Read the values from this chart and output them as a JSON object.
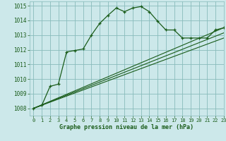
{
  "title": "Graphe pression niveau de la mer (hPa)",
  "background_color": "#cce8ea",
  "grid_color": "#88bbbb",
  "line_color": "#1a5c1a",
  "text_color": "#1a5c1a",
  "xlim": [
    -0.5,
    23
  ],
  "ylim": [
    1007.5,
    1015.3
  ],
  "yticks": [
    1008,
    1009,
    1010,
    1011,
    1012,
    1013,
    1014,
    1015
  ],
  "xticks": [
    0,
    1,
    2,
    3,
    4,
    5,
    6,
    7,
    8,
    9,
    10,
    11,
    12,
    13,
    14,
    15,
    16,
    17,
    18,
    19,
    20,
    21,
    22,
    23
  ],
  "main_series": [
    [
      0,
      1008.0
    ],
    [
      1,
      1008.2
    ],
    [
      2,
      1009.5
    ],
    [
      3,
      1009.65
    ],
    [
      4,
      1011.85
    ],
    [
      5,
      1011.95
    ],
    [
      6,
      1012.05
    ],
    [
      7,
      1013.0
    ],
    [
      8,
      1013.8
    ],
    [
      9,
      1014.35
    ],
    [
      10,
      1014.85
    ],
    [
      11,
      1014.6
    ],
    [
      12,
      1014.85
    ],
    [
      13,
      1014.95
    ],
    [
      14,
      1014.6
    ],
    [
      15,
      1013.95
    ],
    [
      16,
      1013.35
    ],
    [
      17,
      1013.35
    ],
    [
      18,
      1012.8
    ],
    [
      19,
      1012.8
    ],
    [
      20,
      1012.8
    ],
    [
      21,
      1012.8
    ],
    [
      22,
      1013.35
    ],
    [
      23,
      1013.5
    ]
  ],
  "flat_series": [
    [
      [
        0,
        1008.0
      ],
      [
        23,
        1013.5
      ]
    ],
    [
      [
        0,
        1008.0
      ],
      [
        23,
        1013.15
      ]
    ],
    [
      [
        0,
        1008.0
      ],
      [
        23,
        1012.8
      ]
    ]
  ]
}
